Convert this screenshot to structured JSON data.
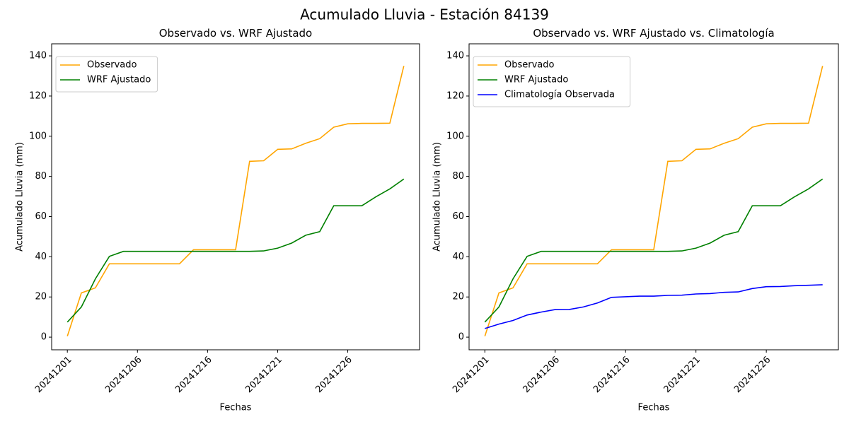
{
  "title": "Acumulado Lluvia - Estación 84139",
  "chart_data": [
    {
      "type": "line",
      "title": "Observado vs. WRF Ajustado",
      "x_label": "Fechas",
      "y_label": "Acumulado Lluvia (mm)",
      "categories": [
        "20241201",
        null,
        null,
        null,
        null,
        "20241206",
        null,
        null,
        null,
        null,
        "20241216",
        null,
        null,
        null,
        null,
        "20241221",
        null,
        null,
        null,
        null,
        "20241226",
        null,
        null,
        null,
        null
      ],
      "ylim": [
        -6.3,
        146
      ],
      "yticks": [
        0,
        20,
        40,
        60,
        80,
        100,
        120,
        140
      ],
      "legend": "upper left",
      "series": [
        {
          "name": "Observado",
          "color": "orange",
          "values": [
            0.5,
            22,
            24.5,
            36.5,
            36.5,
            36.5,
            36.5,
            36.5,
            36.5,
            43.5,
            43.5,
            43.5,
            43.5,
            87.5,
            87.8,
            93.5,
            93.7,
            96.5,
            98.8,
            104.5,
            106.2,
            106.4,
            106.4,
            106.5,
            135
          ]
        },
        {
          "name": "WRF Ajustado",
          "color": "green",
          "values": [
            7.5,
            15,
            29,
            40.2,
            42.7,
            42.7,
            42.7,
            42.7,
            42.7,
            42.7,
            42.7,
            42.7,
            42.7,
            42.7,
            42.9,
            44.3,
            46.8,
            50.7,
            52.5,
            65.4,
            65.4,
            65.4,
            69.8,
            73.8,
            78.7
          ]
        }
      ]
    },
    {
      "type": "line",
      "title": "Observado vs. WRF Ajustado vs. Climatología",
      "x_label": "Fechas",
      "y_label": "Acumulado Lluvia (mm)",
      "categories": [
        "20241201",
        null,
        null,
        null,
        null,
        "20241206",
        null,
        null,
        null,
        null,
        "20241216",
        null,
        null,
        null,
        null,
        "20241221",
        null,
        null,
        null,
        null,
        "20241226",
        null,
        null,
        null,
        null
      ],
      "ylim": [
        -6.3,
        146
      ],
      "yticks": [
        0,
        20,
        40,
        60,
        80,
        100,
        120,
        140
      ],
      "legend": "upper left",
      "series": [
        {
          "name": "Observado",
          "color": "orange",
          "values": [
            0.5,
            22,
            24.5,
            36.5,
            36.5,
            36.5,
            36.5,
            36.5,
            36.5,
            43.5,
            43.5,
            43.5,
            43.5,
            87.5,
            87.8,
            93.5,
            93.7,
            96.5,
            98.8,
            104.5,
            106.2,
            106.4,
            106.4,
            106.5,
            135
          ]
        },
        {
          "name": "WRF Ajustado",
          "color": "green",
          "values": [
            7.5,
            15,
            29,
            40.2,
            42.7,
            42.7,
            42.7,
            42.7,
            42.7,
            42.7,
            42.7,
            42.7,
            42.7,
            42.7,
            42.9,
            44.3,
            46.8,
            50.7,
            52.5,
            65.4,
            65.4,
            65.4,
            69.8,
            73.8,
            78.7
          ]
        },
        {
          "name": "Climatología Observada",
          "color": "blue",
          "values": [
            4.3,
            6.5,
            8.3,
            11,
            12.5,
            13.7,
            13.8,
            15,
            17,
            19.8,
            20.1,
            20.4,
            20.4,
            20.8,
            20.9,
            21.5,
            21.7,
            22.3,
            22.5,
            24.2,
            25.1,
            25.2,
            25.6,
            25.8,
            26.1
          ]
        }
      ]
    }
  ]
}
